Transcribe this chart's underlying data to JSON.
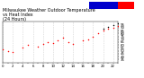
{
  "title": "Milwaukee Weather Outdoor Temperature\nvs Heat Index\n(24 Hours)",
  "title_fontsize": 3.5,
  "title_color": "#000000",
  "bg_color": "#ffffff",
  "plot_bg_color": "#ffffff",
  "grid_color": "#aaaaaa",
  "legend_temp_color": "#0000cc",
  "legend_heat_color": "#ff0000",
  "dot_color": "#ff0000",
  "dark_dot_color": "#000000",
  "xlim": [
    0,
    23
  ],
  "ylim": [
    30,
    100
  ],
  "tick_fontsize": 2.8,
  "hours_temp": [
    0,
    1,
    2,
    4,
    5,
    7,
    8,
    9,
    10,
    11,
    12,
    13,
    14,
    16,
    17,
    18,
    19,
    20,
    21,
    22,
    23
  ],
  "temp_vals": [
    52,
    50,
    48,
    55,
    60,
    58,
    62,
    65,
    63,
    68,
    72,
    65,
    62,
    68,
    70,
    75,
    80,
    85,
    88,
    90,
    93
  ],
  "hours_heat": [
    20,
    21,
    22,
    23
  ],
  "heat_vals": [
    88,
    91,
    95,
    98
  ],
  "ytick_vals": [
    35,
    40,
    45,
    50,
    55,
    60,
    65,
    70,
    75,
    80,
    85,
    90,
    95
  ],
  "xtick_vals": [
    0,
    1,
    2,
    3,
    4,
    5,
    6,
    7,
    8,
    9,
    10,
    11,
    12,
    13,
    14,
    15,
    16,
    17,
    18,
    19,
    20,
    21,
    22,
    23
  ]
}
